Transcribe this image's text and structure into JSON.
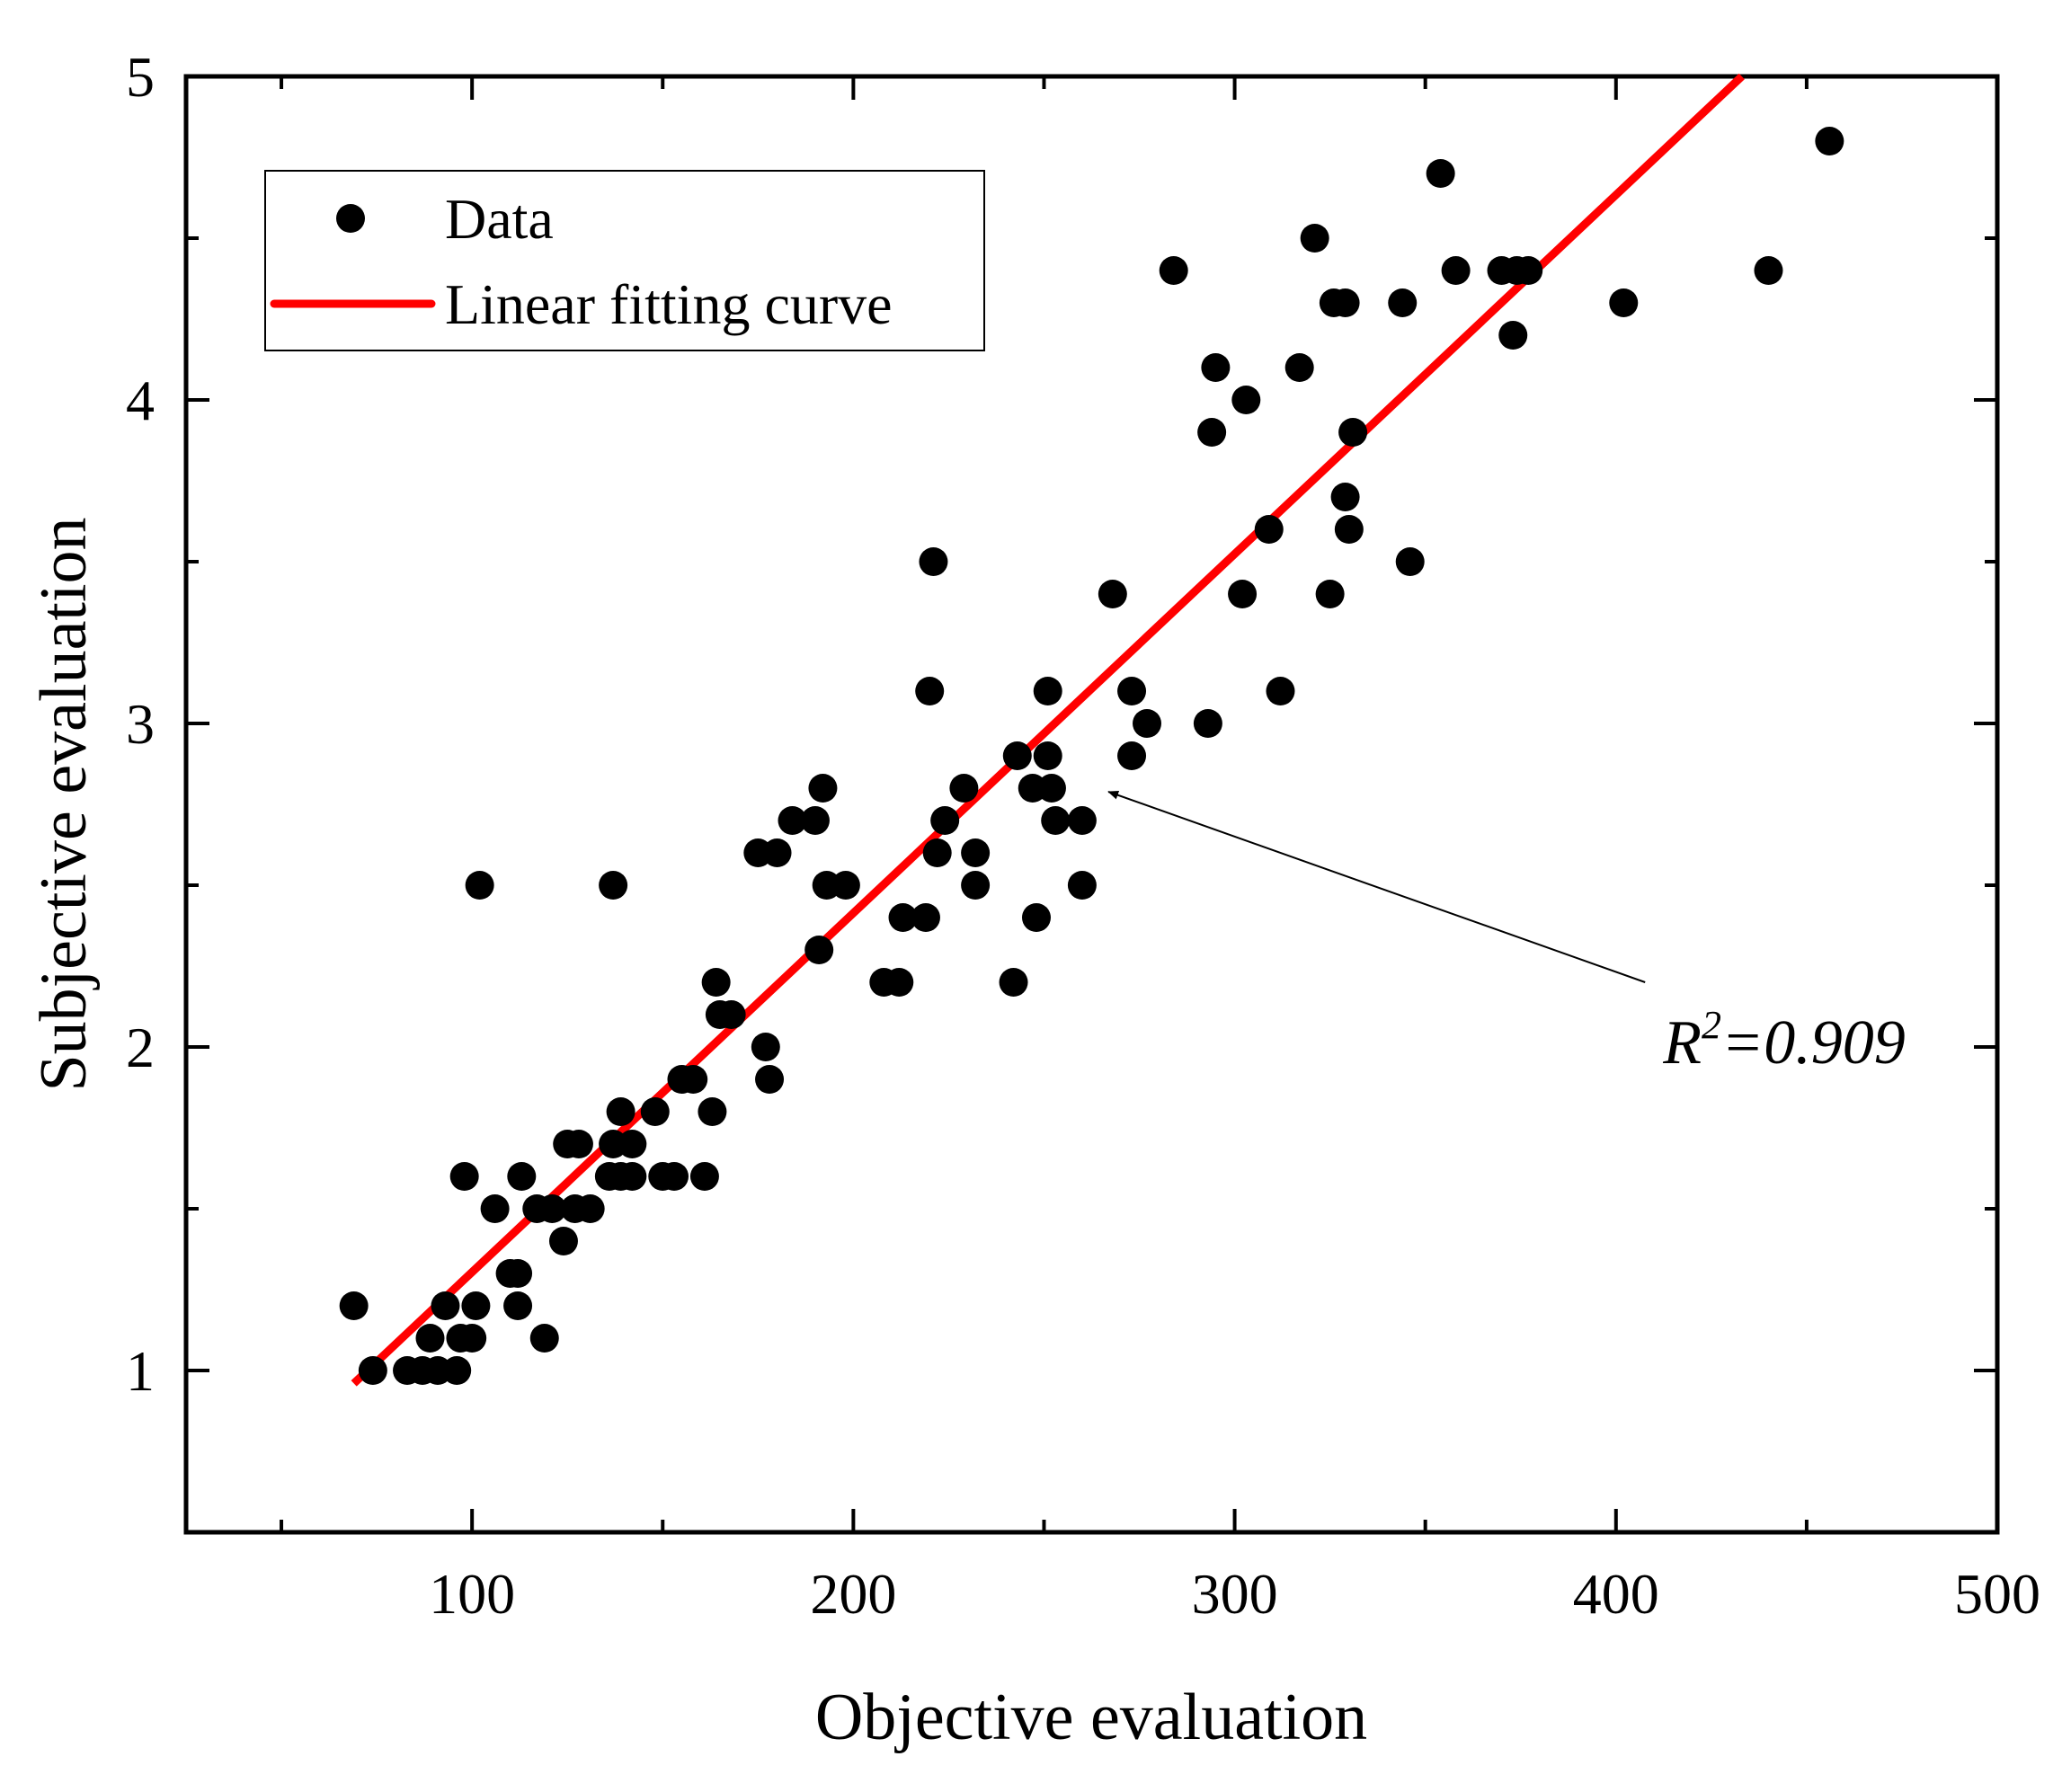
{
  "chart_data": {
    "type": "scatter",
    "xlabel": "Objective evaluation",
    "ylabel": "Subjective evaluation",
    "xlim": [
      25,
      500
    ],
    "ylim": [
      0.5,
      5
    ],
    "xticks": [
      100,
      200,
      300,
      400,
      500
    ],
    "yticks": [
      1,
      2,
      3,
      4,
      5
    ],
    "xminor": [
      50,
      150,
      250,
      350,
      450
    ],
    "yminor": [
      1.5,
      2.5,
      3.5,
      4.5
    ],
    "legend_position": "top-left",
    "series": [
      {
        "name": "Data",
        "kind": "markers",
        "points": [
          [
            69,
            1.2
          ],
          [
            74,
            1.0
          ],
          [
            83,
            1.0
          ],
          [
            87,
            1.0
          ],
          [
            89,
            1.1
          ],
          [
            91,
            1.0
          ],
          [
            93,
            1.2
          ],
          [
            96,
            1.0
          ],
          [
            97,
            1.1
          ],
          [
            98,
            1.6
          ],
          [
            100,
            1.1
          ],
          [
            101,
            1.2
          ],
          [
            102,
            2.5
          ],
          [
            106,
            1.5
          ],
          [
            110,
            1.3
          ],
          [
            112,
            1.2
          ],
          [
            112,
            1.3
          ],
          [
            113,
            1.6
          ],
          [
            119,
            1.1
          ],
          [
            117,
            1.5
          ],
          [
            121,
            1.5
          ],
          [
            124,
            1.4
          ],
          [
            125,
            1.7
          ],
          [
            127,
            1.5
          ],
          [
            128,
            1.7
          ],
          [
            131,
            1.5
          ],
          [
            136,
            1.6
          ],
          [
            137,
            1.7
          ],
          [
            137,
            2.5
          ],
          [
            139,
            1.6
          ],
          [
            139,
            1.8
          ],
          [
            142,
            1.7
          ],
          [
            142,
            1.6
          ],
          [
            148,
            1.8
          ],
          [
            150,
            1.6
          ],
          [
            153,
            1.6
          ],
          [
            155,
            1.9
          ],
          [
            158,
            1.9
          ],
          [
            161,
            1.6
          ],
          [
            163,
            1.8
          ],
          [
            164,
            2.2
          ],
          [
            165,
            2.1
          ],
          [
            168,
            2.1
          ],
          [
            175,
            2.6
          ],
          [
            177,
            2.0
          ],
          [
            178,
            1.9
          ],
          [
            180,
            2.6
          ],
          [
            184,
            2.7
          ],
          [
            190,
            2.7
          ],
          [
            191,
            2.3
          ],
          [
            192,
            2.8
          ],
          [
            193,
            2.5
          ],
          [
            198,
            2.5
          ],
          [
            208,
            2.2
          ],
          [
            212,
            2.2
          ],
          [
            213,
            2.4
          ],
          [
            219,
            2.4
          ],
          [
            220,
            3.1
          ],
          [
            221,
            3.5
          ],
          [
            222,
            2.6
          ],
          [
            224,
            2.7
          ],
          [
            229,
            2.8
          ],
          [
            232,
            2.6
          ],
          [
            232,
            2.5
          ],
          [
            242,
            2.2
          ],
          [
            243,
            2.9
          ],
          [
            247,
            2.8
          ],
          [
            248,
            2.4
          ],
          [
            251,
            3.1
          ],
          [
            251,
            2.9
          ],
          [
            252,
            2.8
          ],
          [
            253,
            2.7
          ],
          [
            260,
            2.7
          ],
          [
            260,
            2.5
          ],
          [
            268,
            3.4
          ],
          [
            273,
            3.1
          ],
          [
            273,
            2.9
          ],
          [
            277,
            3.0
          ],
          [
            284,
            4.4
          ],
          [
            293,
            3.0
          ],
          [
            294,
            3.9
          ],
          [
            295,
            4.1
          ],
          [
            302,
            3.4
          ],
          [
            303,
            4.0
          ],
          [
            309,
            3.6
          ],
          [
            312,
            3.1
          ],
          [
            317,
            4.1
          ],
          [
            321,
            4.5
          ],
          [
            325,
            3.4
          ],
          [
            326,
            4.3
          ],
          [
            329,
            4.3
          ],
          [
            329,
            3.7
          ],
          [
            330,
            3.6
          ],
          [
            331,
            3.9
          ],
          [
            344,
            4.3
          ],
          [
            346,
            3.5
          ],
          [
            354,
            4.7
          ],
          [
            358,
            4.4
          ],
          [
            370,
            4.4
          ],
          [
            373,
            4.2
          ],
          [
            374,
            4.4
          ],
          [
            377,
            4.4
          ],
          [
            402,
            4.3
          ],
          [
            440,
            4.4
          ],
          [
            456,
            4.8
          ]
        ]
      },
      {
        "name": "Linear fitting curve",
        "kind": "line",
        "color": "#ff0000",
        "x": [
          69,
          433
        ],
        "y": [
          0.96,
          5.0
        ]
      }
    ],
    "annotations": [
      {
        "text_base": "R",
        "text_sup": "2",
        "text_value": "=0.909",
        "points_to": [
          265,
          2.8
        ],
        "text_at": [
          410,
          1.95
        ]
      }
    ]
  }
}
